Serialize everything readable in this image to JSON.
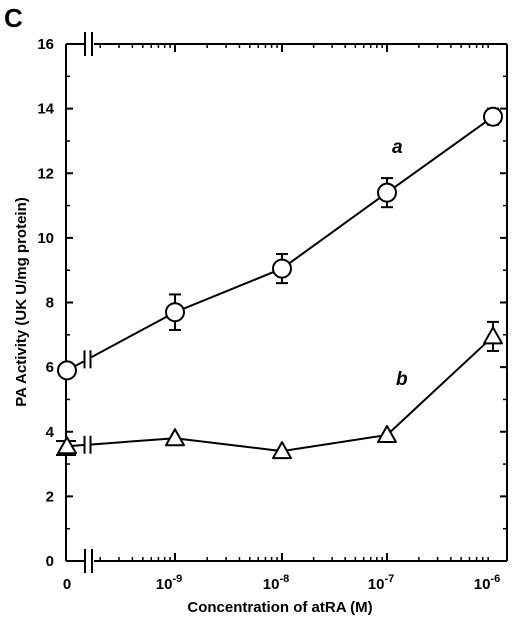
{
  "panel_label": "C",
  "chart_data": {
    "type": "line",
    "xlabel": "Concentration of atRA (M)",
    "ylabel": "PA Activity (UK U/mg protein)",
    "categories": [
      "0",
      "10-9",
      "10-8",
      "10-7",
      "10-6"
    ],
    "category_ticks": [
      {
        "base": "0",
        "exp": ""
      },
      {
        "base": "10",
        "exp": "-9"
      },
      {
        "base": "10",
        "exp": "-8"
      },
      {
        "base": "10",
        "exp": "-7"
      },
      {
        "base": "10",
        "exp": "-6"
      }
    ],
    "ylim": [
      0,
      16
    ],
    "yticks": [
      0,
      2,
      4,
      6,
      8,
      10,
      12,
      14,
      16
    ],
    "axis_breaks": true,
    "grid": false,
    "series": [
      {
        "name": "a",
        "marker": "circle",
        "values": [
          5.9,
          7.7,
          9.05,
          11.4,
          13.75
        ],
        "errors": [
          0.0,
          0.55,
          0.45,
          0.45,
          0.25
        ]
      },
      {
        "name": "b",
        "marker": "triangle",
        "values": [
          3.55,
          3.8,
          3.4,
          3.9,
          6.95
        ],
        "errors": [
          0.0,
          0.0,
          0.0,
          0.0,
          0.45
        ]
      }
    ]
  }
}
